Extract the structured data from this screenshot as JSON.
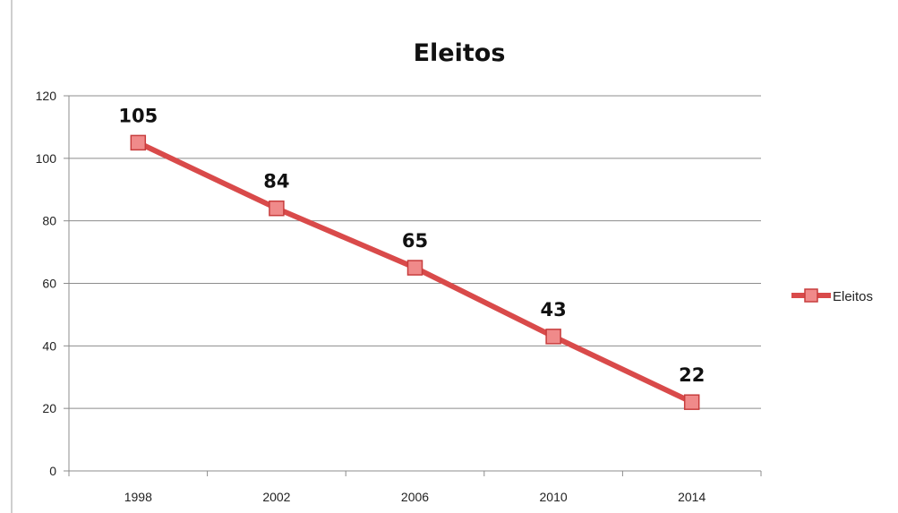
{
  "chart_data": {
    "type": "line",
    "title": "Eleitos",
    "xlabel": "",
    "ylabel": "",
    "categories": [
      "1998",
      "2002",
      "2006",
      "2010",
      "2014"
    ],
    "series": [
      {
        "name": "Eleitos",
        "values": [
          105,
          84,
          65,
          43,
          22
        ],
        "data_labels": [
          "105",
          "84",
          "65",
          "43",
          "22"
        ],
        "color": "#d94a4a",
        "marker": "square",
        "marker_fill": "#f08a8a"
      }
    ],
    "ylim": [
      0,
      120
    ],
    "y_ticks": [
      "0",
      "20",
      "40",
      "60",
      "80",
      "100",
      "120"
    ],
    "grid": true,
    "legend_position": "right"
  },
  "colors": {
    "line": "#d94a4a",
    "marker_fill": "#f08a8a",
    "marker_stroke": "#c73d3d",
    "grid": "#8c8c8c",
    "axis": "#8c8c8c",
    "left_border": "#cfcfcf"
  }
}
